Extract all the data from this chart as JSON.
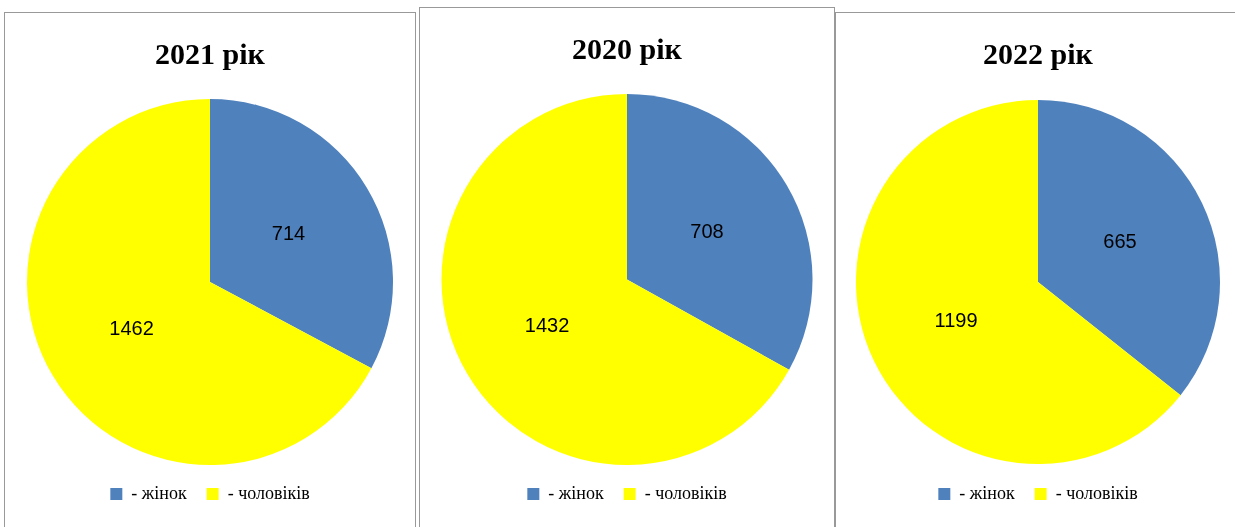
{
  "chart_data": [
    {
      "type": "pie",
      "title": "2021 рік",
      "categories": [
        "- жінок",
        "- чоловіків"
      ],
      "values": [
        714,
        1462
      ],
      "colors": [
        "#4f81bd",
        "#ffff00"
      ],
      "data_labels": true,
      "legend": "bottom"
    },
    {
      "type": "pie",
      "title": "2020 рік",
      "categories": [
        "- жінок",
        "- чоловіків"
      ],
      "values": [
        708,
        1432
      ],
      "colors": [
        "#4f81bd",
        "#ffff00"
      ],
      "data_labels": true,
      "legend": "bottom"
    },
    {
      "type": "pie",
      "title": "2022 рік",
      "categories": [
        "- жінок",
        "- чоловіків"
      ],
      "values": [
        665,
        1199
      ],
      "colors": [
        "#4f81bd",
        "#ffff00"
      ],
      "data_labels": true,
      "legend": "bottom"
    }
  ]
}
